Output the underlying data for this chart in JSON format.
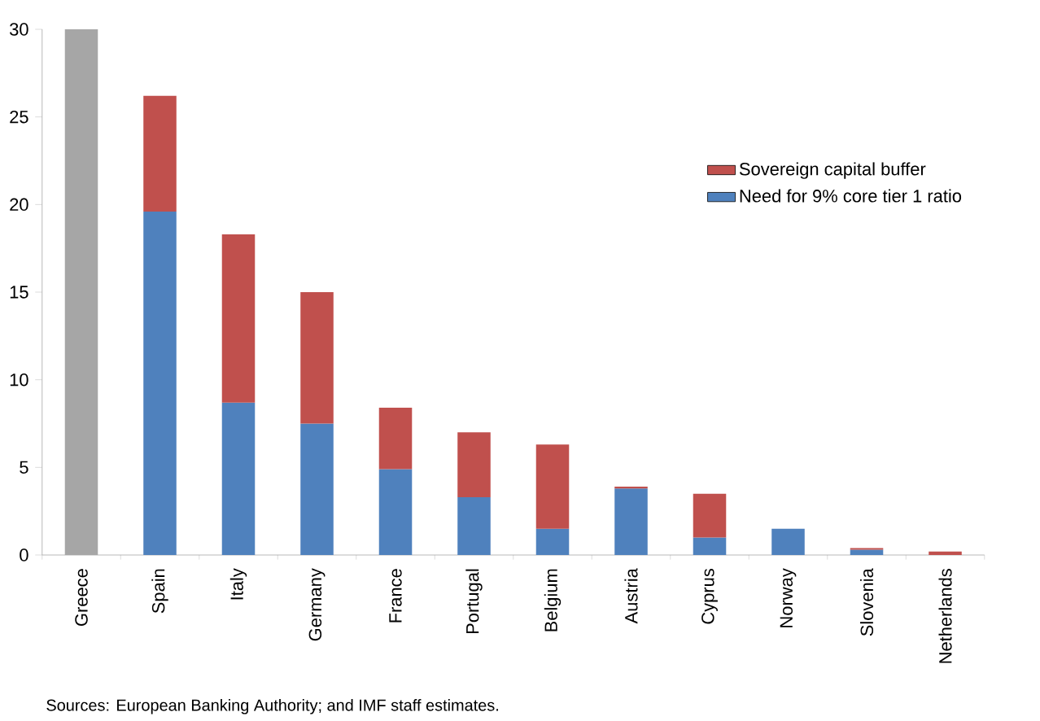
{
  "chart_data": {
    "type": "bar",
    "stacked": true,
    "categories": [
      "Greece",
      "Spain",
      "Italy",
      "Germany",
      "France",
      "Portugal",
      "Belgium",
      "Austria",
      "Cyprus",
      "Norway",
      "Slovenia",
      "Netherlands"
    ],
    "series": [
      {
        "name": "Need for 9% core tier 1 ratio",
        "color": "#4f81bd",
        "values": [
          null,
          19.6,
          8.7,
          7.5,
          4.9,
          3.3,
          1.5,
          3.8,
          1.0,
          1.5,
          0.3,
          null
        ]
      },
      {
        "name": "Sovereign capital buffer",
        "color": "#c0504d",
        "values": [
          null,
          6.6,
          9.6,
          7.5,
          3.5,
          3.7,
          4.8,
          0.1,
          2.5,
          null,
          0.1,
          0.2
        ]
      },
      {
        "color": "#a6a6a6",
        "values": [
          30,
          null,
          null,
          null,
          null,
          null,
          null,
          null,
          null,
          null,
          null,
          null
        ]
      }
    ],
    "ylim": [
      0,
      30
    ],
    "yticks": [
      0,
      5,
      10,
      15,
      20,
      25,
      30
    ],
    "grid": false,
    "legend": "top right",
    "annotations": [
      "Sources: European Banking Authority; and IMF staff estimates."
    ]
  }
}
